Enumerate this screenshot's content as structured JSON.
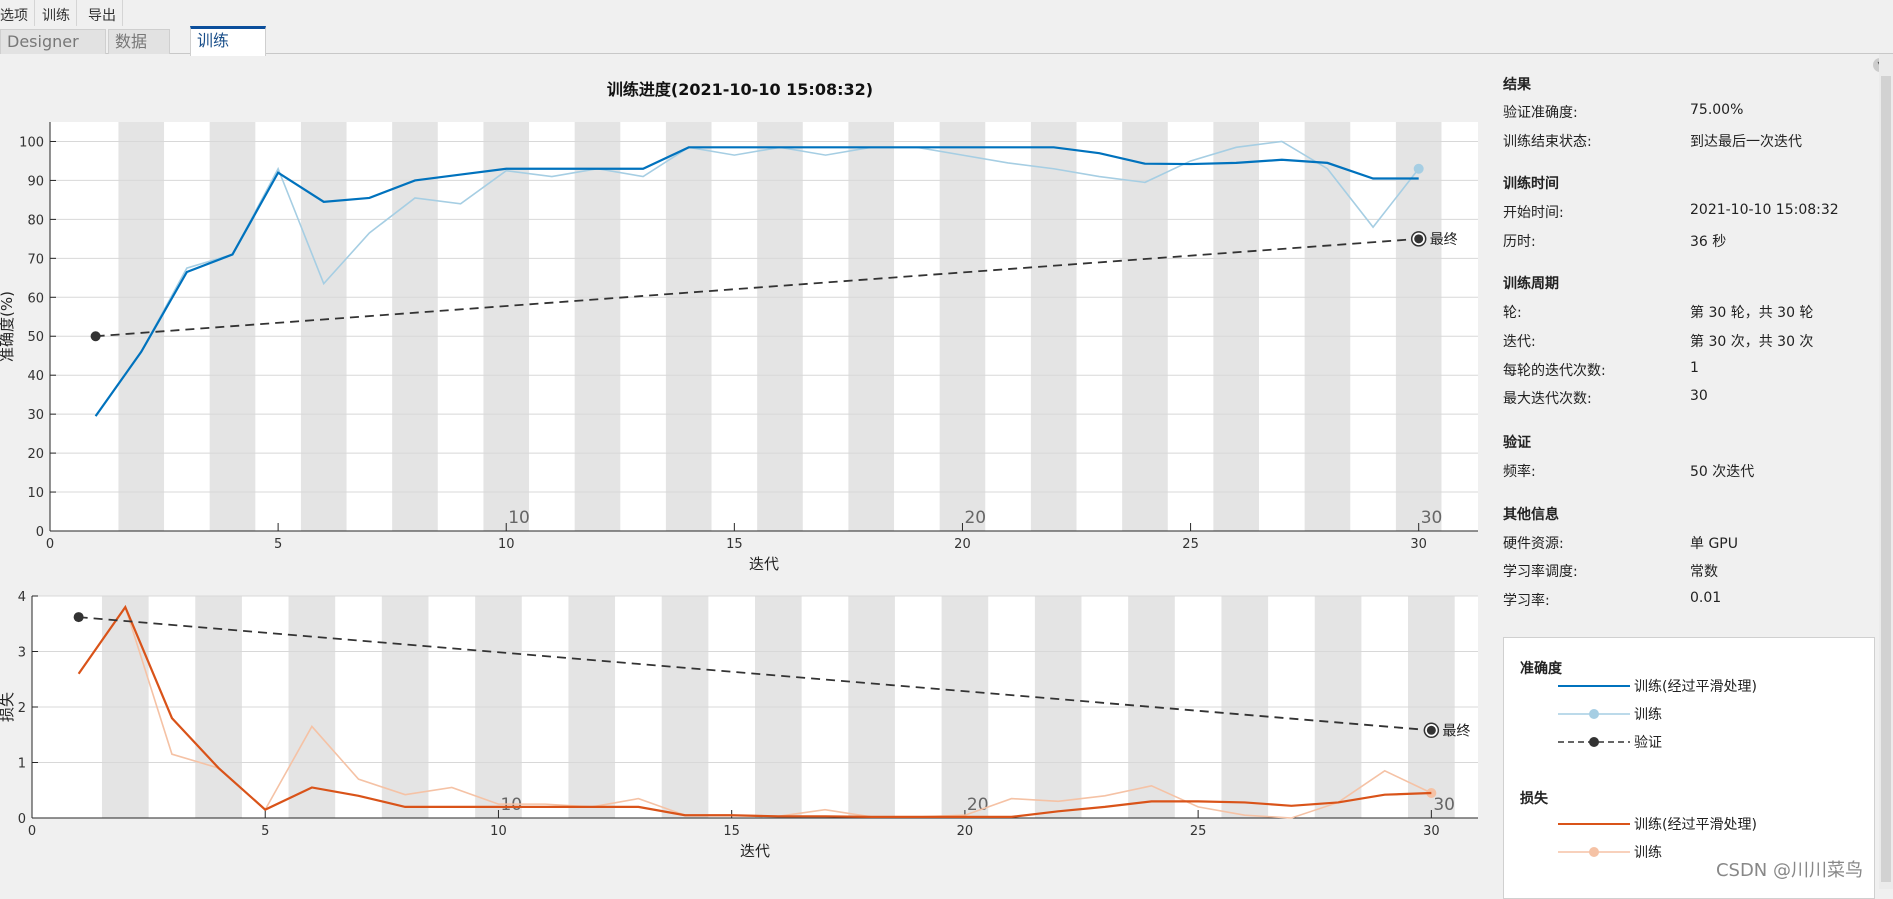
{
  "menu": [
    "选项",
    "训练",
    "导出"
  ],
  "tabs": [
    "Designer",
    "数据",
    "训练"
  ],
  "title": "训练进度(2021-10-10 15:08:32)",
  "side": {
    "results_title": "结果",
    "val_acc_label": "验证准确度:",
    "val_acc_value": "75.00%",
    "end_state_label": "训练结束状态:",
    "end_state_value": "到达最后一次迭代",
    "time_title": "训练时间",
    "start_label": "开始时间:",
    "start_value": "2021-10-10 15:08:32",
    "elapsed_label": "历时:",
    "elapsed_value": "36 秒",
    "cycle_title": "训练周期",
    "epoch_label": "轮:",
    "epoch_value": "第 30 轮，共 30 轮",
    "iter_label": "迭代:",
    "iter_value": "第 30 次，共 30 次",
    "iter_per_epoch_label": "每轮的迭代次数:",
    "iter_per_epoch_value": "1",
    "max_iter_label": "最大迭代次数:",
    "max_iter_value": "30",
    "val_title": "验证",
    "freq_label": "频率:",
    "freq_value": "50 次迭代",
    "other_title": "其他信息",
    "hw_label": "硬件资源:",
    "hw_value": "单 GPU",
    "lr_sched_label": "学习率调度:",
    "lr_sched_value": "常数",
    "lr_label": "学习率:",
    "lr_value": "0.01"
  },
  "legend": {
    "acc_title": "准确度",
    "acc_smooth": "训练(经过平滑处理)",
    "acc_train": "训练",
    "acc_val": "验证",
    "loss_title": "损失",
    "loss_smooth": "训练(经过平滑处理)",
    "loss_train": "训练"
  },
  "watermark": "CSDN @川川菜鸟",
  "colors": {
    "acc_smooth": "#0072bd",
    "acc_train": "#a6cee3",
    "loss_smooth": "#d95319",
    "loss_train": "#f5c2a5",
    "validation": "#333333"
  },
  "chart_data": [
    {
      "type": "line",
      "xlabel": "迭代",
      "ylabel": "准确度(%)",
      "xlim": [
        0,
        31.3
      ],
      "ylim": [
        0,
        105
      ],
      "xticks": [
        0,
        5,
        10,
        15,
        20,
        25,
        30
      ],
      "yticks": [
        0,
        10,
        20,
        30,
        40,
        50,
        60,
        70,
        80,
        90,
        100
      ],
      "epoch_labels": [
        10,
        20,
        30
      ],
      "final_label": "最终",
      "grid": true,
      "series": [
        {
          "name": "训练(经过平滑处理)",
          "x": [
            1,
            2,
            3,
            4,
            5,
            6,
            7,
            8,
            9,
            10,
            11,
            12,
            13,
            14,
            15,
            16,
            17,
            18,
            19,
            20,
            21,
            22,
            23,
            24,
            25,
            26,
            27,
            28,
            29,
            30
          ],
          "values": [
            29.5,
            46,
            66.5,
            71,
            92,
            84.5,
            85.5,
            90,
            91.5,
            93,
            93,
            93,
            93,
            98.5,
            98.5,
            98.5,
            98.5,
            98.5,
            98.5,
            98.5,
            98.5,
            98.5,
            97,
            94.3,
            94.2,
            94.5,
            95.3,
            94.5,
            90.5,
            90.5
          ]
        },
        {
          "name": "训练",
          "x": [
            1,
            2,
            3,
            4,
            5,
            6,
            7,
            8,
            9,
            10,
            11,
            12,
            13,
            14,
            15,
            16,
            17,
            18,
            19,
            20,
            21,
            22,
            23,
            24,
            25,
            26,
            27,
            28,
            29,
            30
          ],
          "values": [
            29.5,
            46,
            67.5,
            71,
            93,
            63.5,
            76.5,
            85.5,
            84,
            92.5,
            91,
            93,
            91,
            98.5,
            96.5,
            98.5,
            96.5,
            98.5,
            98.5,
            96.5,
            94.5,
            93,
            91,
            89.5,
            95,
            98.5,
            100,
            93,
            78,
            93
          ]
        },
        {
          "name": "验证",
          "x": [
            1,
            30
          ],
          "values": [
            50,
            75
          ]
        }
      ]
    },
    {
      "type": "line",
      "xlabel": "迭代",
      "ylabel": "损失",
      "xlim": [
        0,
        31
      ],
      "ylim": [
        0,
        4
      ],
      "xticks": [
        0,
        5,
        10,
        15,
        20,
        25,
        30
      ],
      "yticks": [
        0,
        1,
        2,
        3,
        4
      ],
      "epoch_labels": [
        10,
        20,
        30
      ],
      "final_label": "最终",
      "grid": true,
      "series": [
        {
          "name": "训练(经过平滑处理)",
          "x": [
            1,
            2,
            3,
            4,
            5,
            6,
            7,
            8,
            9,
            10,
            11,
            12,
            13,
            14,
            15,
            16,
            17,
            18,
            19,
            20,
            21,
            22,
            23,
            24,
            25,
            26,
            27,
            28,
            29,
            30
          ],
          "values": [
            2.6,
            3.8,
            1.8,
            0.9,
            0.15,
            0.55,
            0.4,
            0.2,
            0.2,
            0.2,
            0.2,
            0.2,
            0.2,
            0.05,
            0.05,
            0.03,
            0.03,
            0.02,
            0.02,
            0.02,
            0.02,
            0.12,
            0.2,
            0.3,
            0.3,
            0.28,
            0.22,
            0.28,
            0.42,
            0.45
          ]
        },
        {
          "name": "训练",
          "x": [
            1,
            2,
            3,
            4,
            5,
            6,
            7,
            8,
            9,
            10,
            11,
            12,
            13,
            14,
            15,
            16,
            17,
            18,
            19,
            20,
            21,
            22,
            23,
            24,
            25,
            26,
            27,
            28,
            29,
            30
          ],
          "values": [
            2.6,
            3.8,
            1.15,
            0.9,
            0.15,
            1.65,
            0.7,
            0.42,
            0.55,
            0.25,
            0.25,
            0.2,
            0.35,
            0.05,
            0.05,
            0.03,
            0.15,
            0.02,
            0.02,
            0.05,
            0.35,
            0.3,
            0.4,
            0.58,
            0.2,
            0.05,
            0.0,
            0.28,
            0.85,
            0.45
          ]
        },
        {
          "name": "验证",
          "x": [
            1,
            30
          ],
          "values": [
            3.62,
            1.58
          ]
        }
      ]
    }
  ]
}
